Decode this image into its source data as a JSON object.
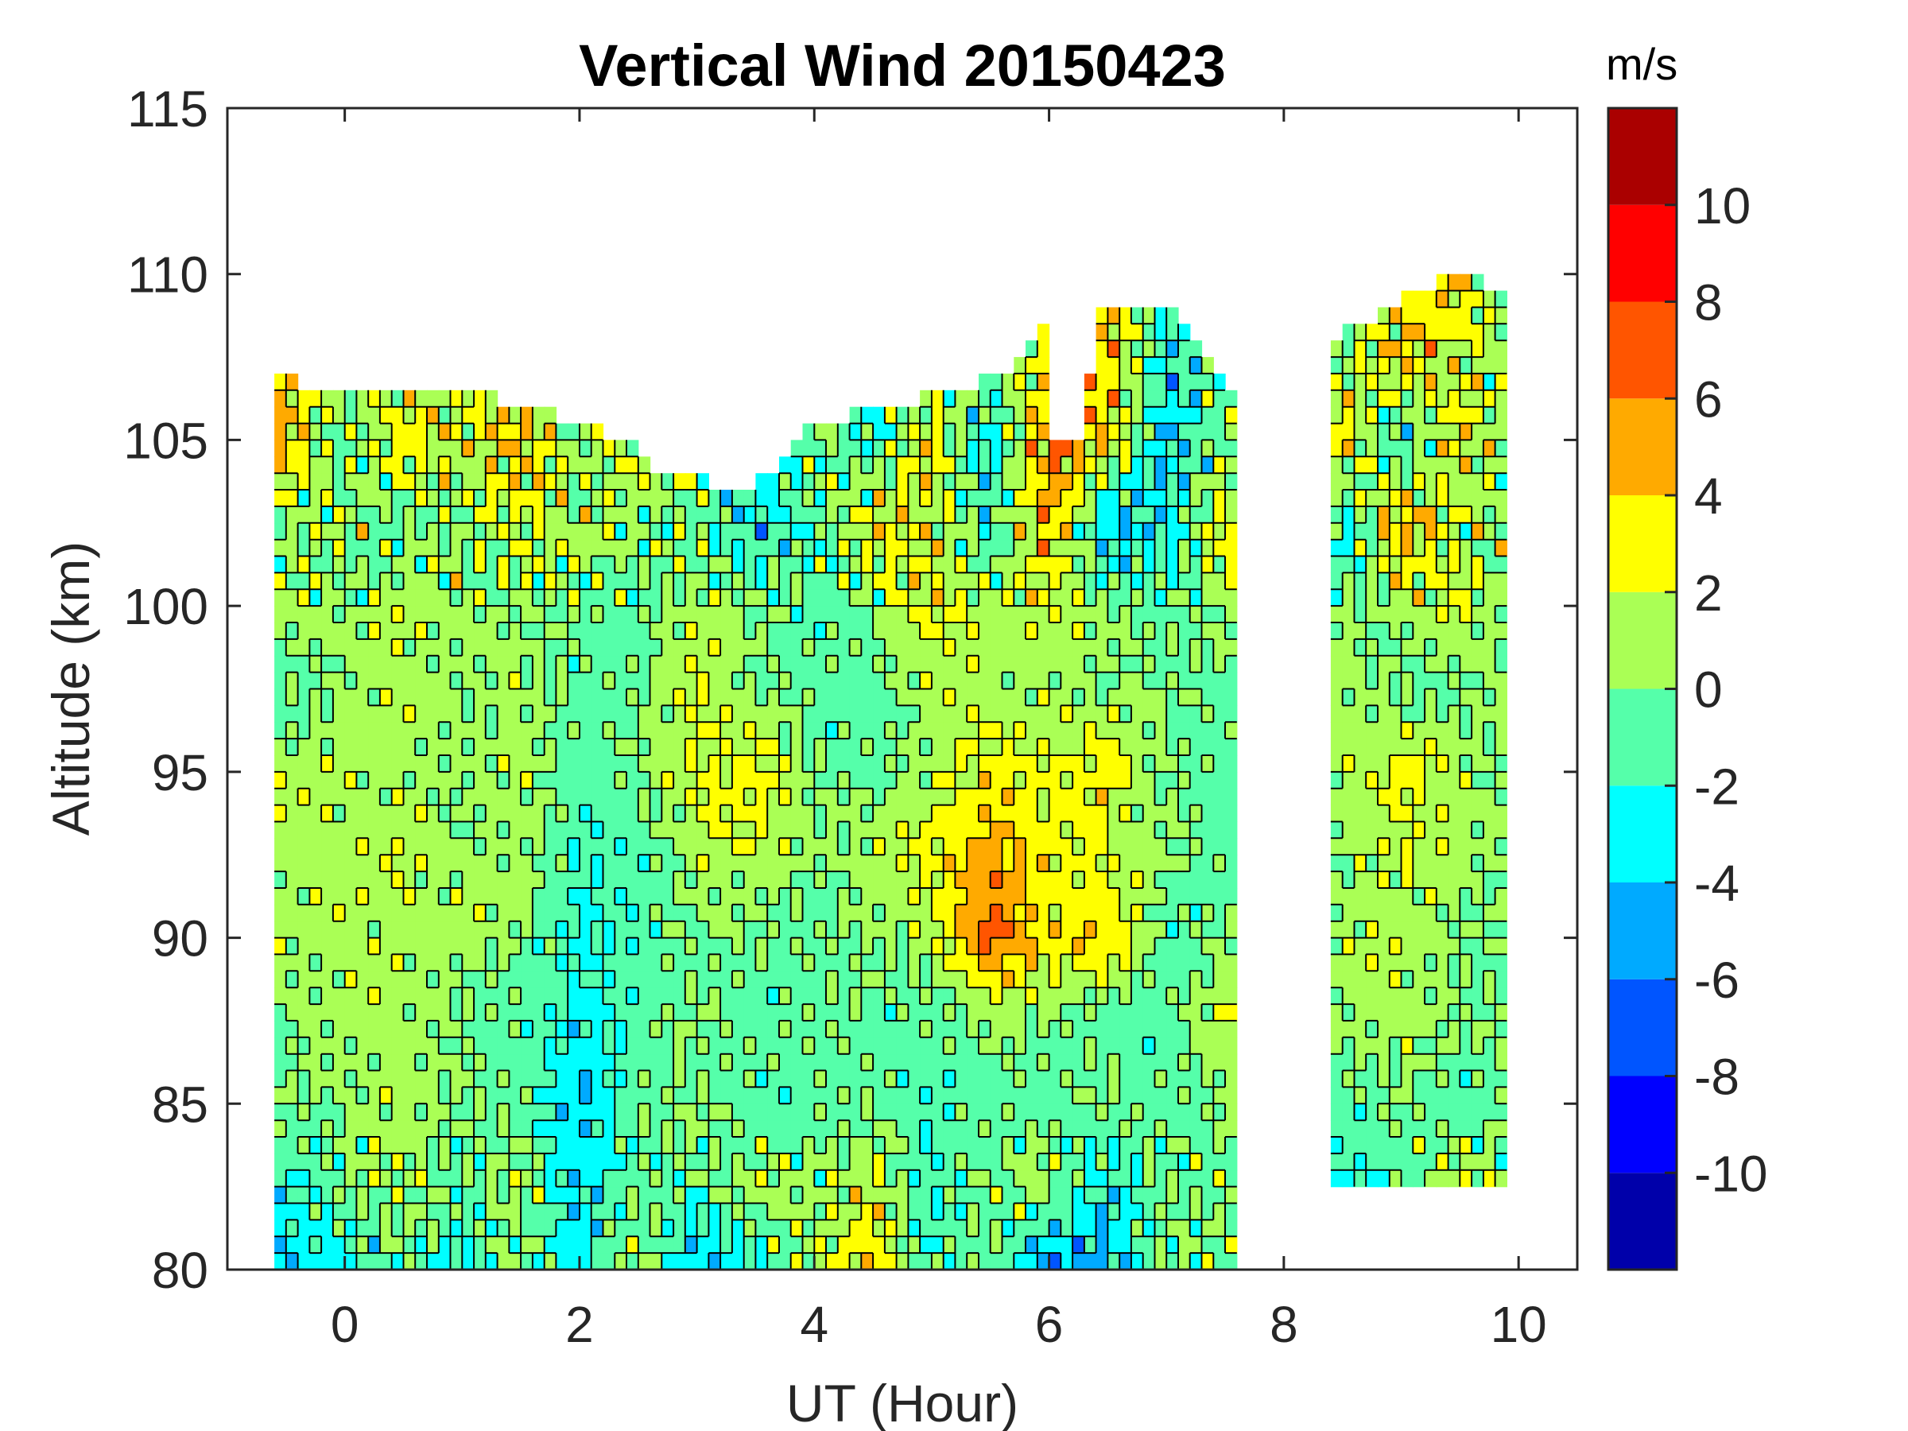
{
  "chart_data": {
    "type": "heatmap",
    "subtype": "filled-contour",
    "title": "Vertical Wind 20150423",
    "xlabel": "UT (Hour)",
    "ylabel": "Altitude (km)",
    "colorbar_label": "m/s",
    "xlim": [
      -1,
      10.5
    ],
    "ylim": [
      80,
      115
    ],
    "xticks": [
      "0",
      "2",
      "4",
      "6",
      "8",
      "10"
    ],
    "yticks": [
      "80",
      "85",
      "90",
      "95",
      "100",
      "105",
      "110",
      "115"
    ],
    "clim": [
      -12,
      12
    ],
    "colorbar_ticks": [
      "-10",
      "-8",
      "-6",
      "-4",
      "-2",
      "0",
      "2",
      "4",
      "6",
      "8",
      "10"
    ],
    "levels": [
      -12,
      -10,
      -8,
      -6,
      -4,
      -2,
      0,
      2,
      4,
      6,
      8,
      10,
      12
    ],
    "level_colors": [
      "#0000aa",
      "#0000ff",
      "#0055ff",
      "#00aaff",
      "#00ffff",
      "#55ffaa",
      "#aaff55",
      "#ffff00",
      "#ffaa00",
      "#ff5500",
      "#ff0000",
      "#aa0000"
    ],
    "grid": false,
    "coverage": [
      {
        "x": [
          -0.6,
          7.6
        ],
        "bottom": 80,
        "top": [
          [
            -0.6,
            106.8
          ],
          [
            1.5,
            106.2
          ],
          [
            2.4,
            105
          ],
          [
            2.7,
            104
          ],
          [
            3.4,
            103.5
          ],
          [
            3.6,
            104
          ],
          [
            4.0,
            105.5
          ],
          [
            5.0,
            106.3
          ],
          [
            5.6,
            107
          ],
          [
            6.0,
            108.7
          ],
          [
            6.05,
            105
          ],
          [
            6.3,
            105
          ],
          [
            6.4,
            109.2
          ],
          [
            7.0,
            109
          ],
          [
            7.6,
            106.5
          ]
        ]
      },
      {
        "x": [
          8.4,
          9.9
        ],
        "bottom": 82.3,
        "top": [
          [
            8.4,
            108
          ],
          [
            9.0,
            109.2
          ],
          [
            9.5,
            110.2
          ],
          [
            9.9,
            109.3
          ]
        ]
      }
    ],
    "x": [
      -0.5,
      0,
      0.5,
      1,
      1.5,
      2,
      2.5,
      3,
      3.5,
      4,
      4.5,
      5,
      5.5,
      6,
      6.5,
      7,
      7.5,
      8,
      8.5,
      9,
      9.5,
      10
    ],
    "y": [
      110,
      107.5,
      105,
      102.5,
      100,
      97.5,
      95,
      92.5,
      90,
      87.5,
      85,
      82.5,
      80
    ],
    "z": [
      [
        0,
        0,
        0,
        0,
        0,
        0,
        0,
        0,
        0,
        0,
        0,
        0,
        0,
        3,
        4,
        -3,
        0,
        0,
        0,
        2,
        4,
        0
      ],
      [
        3,
        2,
        1,
        2,
        3,
        1,
        0,
        0,
        -1,
        0,
        0,
        -2,
        0,
        3,
        4,
        -3,
        0,
        0,
        0,
        4,
        2,
        0
      ],
      [
        4,
        -1,
        3,
        2,
        4,
        0,
        3,
        2,
        -4,
        0,
        -2,
        3,
        -3,
        6,
        4,
        -4,
        0,
        0,
        4,
        -3,
        3,
        0
      ],
      [
        0,
        1,
        -1,
        0,
        2,
        1,
        0,
        -1,
        -3,
        -1,
        3,
        2,
        -2,
        5,
        -4,
        -3,
        3,
        0,
        -3,
        5,
        1,
        0
      ],
      [
        1,
        0,
        1,
        1,
        0,
        0,
        -1,
        1,
        0,
        -1,
        0,
        3,
        1,
        2,
        0,
        -1,
        1,
        0,
        0,
        1,
        2,
        0
      ],
      [
        -1,
        1,
        1,
        0,
        1,
        -1,
        0,
        2,
        0,
        -1,
        -1,
        1,
        1,
        1,
        0,
        0,
        -1,
        0,
        1,
        -1,
        0,
        0
      ],
      [
        1,
        1,
        1,
        0,
        1,
        -1,
        0,
        2,
        3,
        0,
        -1,
        1,
        3,
        2,
        3,
        0,
        -1,
        0,
        1,
        3,
        1,
        0
      ],
      [
        1,
        1,
        2,
        0,
        1,
        -2,
        -1,
        1,
        2,
        0,
        1,
        3,
        5,
        3,
        2,
        0,
        -1,
        0,
        0,
        2,
        1,
        0
      ],
      [
        1,
        1,
        1,
        1,
        0,
        -2,
        -1,
        0,
        0,
        -1,
        0,
        1,
        7,
        3,
        4,
        -1,
        0,
        0,
        1,
        1,
        0,
        0
      ],
      [
        0,
        1,
        1,
        0,
        -1,
        -3,
        -1,
        0,
        -1,
        0,
        -1,
        -1,
        0,
        0,
        -1,
        -1,
        2,
        0,
        0,
        1,
        0,
        0
      ],
      [
        0,
        0,
        1,
        0,
        -1,
        -4,
        -1,
        0,
        -1,
        -1,
        0,
        -2,
        -1,
        -1,
        0,
        -1,
        0,
        0,
        -1,
        0,
        -1,
        0
      ],
      [
        -2,
        0,
        1,
        -1,
        1,
        -4,
        0,
        -1,
        1,
        0,
        2,
        -2,
        0,
        1,
        -3,
        0,
        0,
        0,
        -3,
        -1,
        2,
        0
      ],
      [
        -4,
        -3,
        -1,
        -2,
        0,
        -3,
        1,
        -5,
        -2,
        1,
        4,
        -2,
        0,
        -6,
        -4,
        0,
        0,
        0,
        0,
        0,
        0,
        0
      ]
    ]
  }
}
